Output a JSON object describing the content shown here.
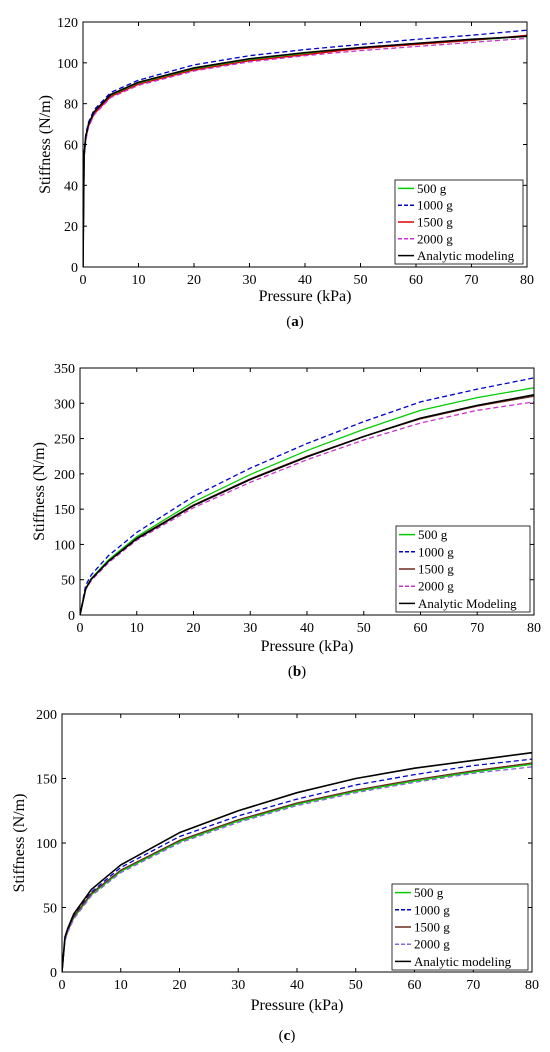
{
  "chart_data": [
    {
      "type": "line",
      "caption_prefix": "(",
      "caption_letter": "a",
      "caption_suffix": ")",
      "title": "",
      "xlabel": "Pressure (kPa)",
      "ylabel": "Stiffness (N/m)",
      "xlim": [
        0,
        80
      ],
      "ylim": [
        0,
        120
      ],
      "xticks": [
        0,
        10,
        20,
        30,
        40,
        50,
        60,
        70,
        80
      ],
      "yticks": [
        0,
        20,
        40,
        60,
        80,
        100,
        120
      ],
      "legend_position": "bottom-right",
      "grid": false,
      "series": [
        {
          "name": "500 g",
          "color": "#00cc00",
          "dash": "solid",
          "x": [
            0,
            0.2,
            0.5,
            1,
            2,
            5,
            10,
            20,
            30,
            40,
            50,
            60,
            70,
            80
          ],
          "y": [
            0,
            55,
            64,
            70,
            76,
            84,
            90,
            97,
            101.5,
            104.5,
            107,
            109,
            111,
            113
          ]
        },
        {
          "name": "1000 g",
          "color": "#0000cc",
          "dash": "dashed",
          "x": [
            0,
            0.2,
            0.5,
            1,
            2,
            5,
            10,
            20,
            30,
            40,
            50,
            60,
            70,
            80
          ],
          "y": [
            0,
            56,
            65,
            71,
            77,
            85.5,
            91.5,
            99,
            103.5,
            106.5,
            109,
            111.5,
            113.5,
            116
          ]
        },
        {
          "name": "1500 g",
          "color": "#dd0000",
          "dash": "solid",
          "x": [
            0,
            0.2,
            0.5,
            1,
            2,
            5,
            10,
            20,
            30,
            40,
            50,
            60,
            70,
            80
          ],
          "y": [
            0,
            54,
            63,
            69,
            75,
            83.5,
            89.5,
            96.5,
            101,
            104,
            107,
            109,
            111,
            113.5
          ]
        },
        {
          "name": "2000 g",
          "color": "#cc33cc",
          "dash": "dashed",
          "x": [
            0,
            0.2,
            0.5,
            1,
            2,
            5,
            10,
            20,
            30,
            40,
            50,
            60,
            70,
            80
          ],
          "y": [
            0,
            53,
            62,
            68.5,
            74.5,
            83,
            89,
            96,
            100.5,
            103.5,
            106,
            108,
            110,
            112
          ]
        },
        {
          "name": "Analytic modeling",
          "color": "#000000",
          "dash": "solid",
          "x": [
            0,
            0.2,
            0.5,
            1,
            2,
            5,
            10,
            20,
            30,
            40,
            50,
            60,
            70,
            80
          ],
          "y": [
            0,
            55,
            64,
            70,
            76,
            84.5,
            90.5,
            97.5,
            102,
            105,
            107.5,
            109.5,
            111.5,
            113
          ]
        }
      ]
    },
    {
      "type": "line",
      "caption_prefix": "(",
      "caption_letter": "b",
      "caption_suffix": ")",
      "title": "",
      "xlabel": "Pressure (kPa)",
      "ylabel": "Stiffness (N/m)",
      "xlim": [
        0,
        80
      ],
      "ylim": [
        0,
        350
      ],
      "xticks": [
        0,
        10,
        20,
        30,
        40,
        50,
        60,
        70,
        80
      ],
      "yticks": [
        0,
        50,
        100,
        150,
        200,
        250,
        300,
        350
      ],
      "legend_position": "bottom-right",
      "grid": false,
      "series": [
        {
          "name": "500 g",
          "color": "#00cc00",
          "dash": "solid",
          "x": [
            0,
            1,
            2,
            5,
            10,
            20,
            30,
            40,
            50,
            60,
            70,
            80
          ],
          "y": [
            0,
            38,
            52,
            78,
            111,
            160,
            199,
            233,
            263,
            290,
            308,
            322
          ]
        },
        {
          "name": "1000 g",
          "color": "#0000cc",
          "dash": "dashed",
          "x": [
            0,
            1,
            2,
            5,
            10,
            20,
            30,
            40,
            50,
            60,
            70,
            80
          ],
          "y": [
            0,
            42,
            57,
            84,
            117,
            168,
            208,
            243,
            274,
            302,
            320,
            336
          ]
        },
        {
          "name": "1500 g",
          "color": "#6b2a1a",
          "dash": "solid",
          "x": [
            0,
            1,
            2,
            5,
            10,
            20,
            30,
            40,
            50,
            60,
            70,
            80
          ],
          "y": [
            0,
            37,
            51,
            76,
            109,
            156,
            193,
            225,
            253,
            278,
            296,
            310
          ]
        },
        {
          "name": "2000 g",
          "color": "#cc33cc",
          "dash": "dashed",
          "x": [
            0,
            1,
            2,
            5,
            10,
            20,
            30,
            40,
            50,
            60,
            70,
            80
          ],
          "y": [
            0,
            36,
            49,
            74,
            106,
            152,
            188,
            220,
            248,
            272,
            290,
            302
          ]
        },
        {
          "name": "Analytic Modeling",
          "color": "#000000",
          "dash": "solid",
          "x": [
            0,
            1,
            2,
            5,
            10,
            20,
            30,
            40,
            50,
            60,
            70,
            80
          ],
          "y": [
            0,
            37,
            51,
            76,
            108,
            155,
            192,
            224,
            253,
            279,
            297,
            312
          ]
        }
      ]
    },
    {
      "type": "line",
      "caption_prefix": "(",
      "caption_letter": "c",
      "caption_suffix": ")",
      "title": "",
      "xlabel": "Pressure (kPa)",
      "ylabel": "Stiffness (N/m)",
      "xlim": [
        0,
        80
      ],
      "ylim": [
        0,
        200
      ],
      "xticks": [
        0,
        10,
        20,
        30,
        40,
        50,
        60,
        70,
        80
      ],
      "yticks": [
        0,
        50,
        100,
        150,
        200
      ],
      "legend_position": "bottom-right",
      "grid": false,
      "series": [
        {
          "name": "500 g",
          "color": "#00cc00",
          "dash": "solid",
          "x": [
            0,
            0.5,
            1,
            2,
            5,
            10,
            20,
            30,
            40,
            50,
            60,
            70,
            80
          ],
          "y": [
            0,
            25,
            32,
            42,
            60,
            78,
            101,
            117,
            130,
            140,
            148,
            155,
            161
          ]
        },
        {
          "name": "1000 g",
          "color": "#0000cc",
          "dash": "dashed",
          "x": [
            0,
            0.5,
            1,
            2,
            5,
            10,
            20,
            30,
            40,
            50,
            60,
            70,
            80
          ],
          "y": [
            0,
            26,
            33,
            44,
            62,
            81,
            105,
            121,
            134,
            145,
            153,
            160,
            165
          ]
        },
        {
          "name": "1500 g",
          "color": "#6b2a1a",
          "dash": "solid",
          "x": [
            0,
            0.5,
            1,
            2,
            5,
            10,
            20,
            30,
            40,
            50,
            60,
            70,
            80
          ],
          "y": [
            0,
            25,
            32,
            43,
            61,
            79,
            102,
            118,
            131,
            141,
            149,
            156,
            162
          ]
        },
        {
          "name": "2000 g",
          "color": "#8866dd",
          "dash": "dashed",
          "x": [
            0,
            0.5,
            1,
            2,
            5,
            10,
            20,
            30,
            40,
            50,
            60,
            70,
            80
          ],
          "y": [
            0,
            24,
            31,
            41,
            59,
            77,
            100,
            116,
            129,
            139,
            147,
            154,
            159
          ]
        },
        {
          "name": "Analytic modeling",
          "color": "#000000",
          "dash": "solid",
          "x": [
            0,
            0.5,
            1,
            2,
            5,
            10,
            20,
            30,
            40,
            50,
            60,
            70,
            80
          ],
          "y": [
            0,
            27,
            34,
            45,
            64,
            83,
            108,
            125,
            139,
            150,
            158,
            164,
            170
          ]
        }
      ]
    }
  ]
}
